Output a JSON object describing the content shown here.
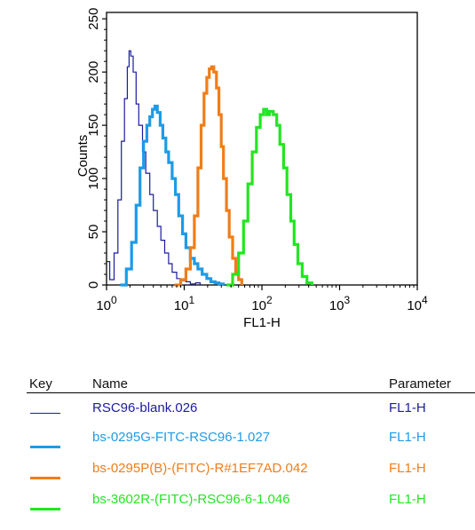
{
  "chart_data": {
    "type": "line",
    "title": "",
    "xlabel": "FL1-H",
    "ylabel": "Counts",
    "xscale": "log",
    "xlim": [
      1,
      10000
    ],
    "ylim": [
      0,
      256
    ],
    "x_ticks": [
      {
        "base": "10",
        "exp": "0",
        "value": 1
      },
      {
        "base": "10",
        "exp": "1",
        "value": 10
      },
      {
        "base": "10",
        "exp": "2",
        "value": 100
      },
      {
        "base": "10",
        "exp": "3",
        "value": 1000
      },
      {
        "base": "10",
        "exp": "4",
        "value": 10000
      }
    ],
    "y_ticks": [
      "0",
      "50",
      "100",
      "150",
      "200",
      "250"
    ],
    "grid": false,
    "legend": "below",
    "series": [
      {
        "name": "RSC96-blank.026",
        "parameter": "FL1-H",
        "color": "#1c1c9e",
        "width": 1.2,
        "x": [
          1.0,
          1.1,
          1.25,
          1.4,
          1.55,
          1.7,
          1.85,
          1.95,
          2.05,
          2.2,
          2.4,
          2.6,
          2.9,
          3.2,
          3.6,
          4.0,
          4.5,
          5.0,
          5.6,
          6.3,
          7.0,
          8.0,
          9.0,
          10.5,
          12.0,
          14.0,
          16.0
        ],
        "y": [
          22,
          5,
          30,
          80,
          135,
          175,
          205,
          220,
          215,
          200,
          170,
          150,
          125,
          105,
          85,
          70,
          55,
          42,
          30,
          20,
          12,
          6,
          4,
          3,
          1,
          2,
          0
        ]
      },
      {
        "name": "bs-0295G-FITC-RSC96-1.027",
        "parameter": "FL1-H",
        "color": "#1e9be6",
        "width": 3.2,
        "x": [
          1.5,
          1.8,
          2.1,
          2.4,
          2.7,
          3.0,
          3.3,
          3.6,
          3.9,
          4.2,
          4.5,
          4.9,
          5.3,
          5.8,
          6.3,
          7.0,
          7.7,
          8.5,
          9.5,
          10.5,
          12.0,
          13.5,
          15.0,
          17.0,
          19.5,
          22.0,
          25.0,
          28.0,
          32.0
        ],
        "y": [
          0,
          15,
          40,
          75,
          110,
          135,
          150,
          158,
          165,
          168,
          162,
          150,
          138,
          125,
          115,
          100,
          85,
          65,
          48,
          35,
          25,
          20,
          15,
          10,
          6,
          3,
          2,
          1,
          0
        ]
      },
      {
        "name": "bs-0295P(B)-(FITC)-R#1EF7AD.042",
        "parameter": "FL1-H",
        "color": "#f07d19",
        "width": 3.2,
        "x": [
          7.5,
          9.0,
          10.5,
          12.0,
          13.5,
          15.0,
          16.5,
          18.0,
          19.5,
          21.0,
          22.5,
          24.0,
          26.0,
          28.0,
          30.0,
          32.0,
          35.0,
          38.0,
          42.0,
          46.0,
          50.0,
          55.0
        ],
        "y": [
          0,
          5,
          15,
          35,
          65,
          110,
          150,
          180,
          195,
          203,
          205,
          200,
          185,
          160,
          130,
          100,
          70,
          45,
          25,
          12,
          5,
          0
        ]
      },
      {
        "name": "bs-3602R-(FITC)-RSC96-6-1.046",
        "parameter": "FL1-H",
        "color": "#22e622",
        "width": 3.2,
        "x": [
          35,
          42,
          50,
          58,
          66,
          75,
          85,
          95,
          105,
          115,
          125,
          140,
          155,
          170,
          190,
          210,
          235,
          260,
          290,
          330,
          380,
          440
        ],
        "y": [
          0,
          10,
          30,
          60,
          95,
          125,
          148,
          160,
          165,
          160,
          163,
          160,
          150,
          132,
          110,
          85,
          60,
          38,
          20,
          8,
          2,
          0
        ]
      }
    ]
  },
  "key": {
    "key_header": "Key",
    "name_header": "Name",
    "parameter_header": "Parameter"
  }
}
